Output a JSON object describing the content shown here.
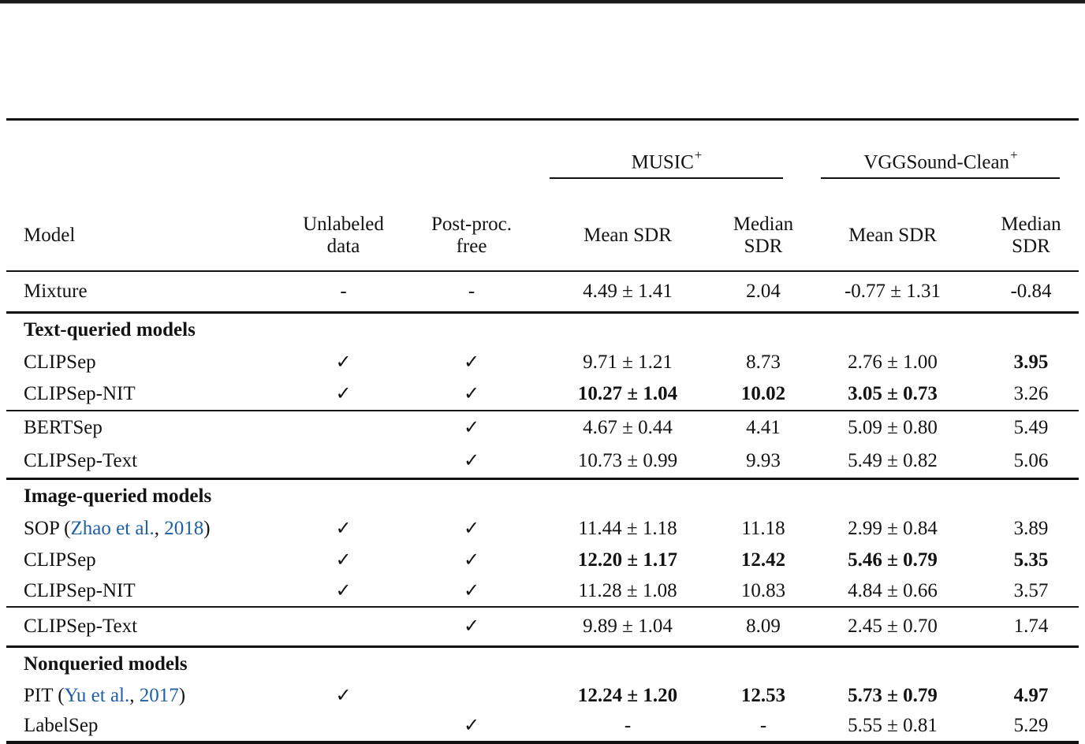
{
  "page": {
    "top_border_color": "#1a1a1a"
  },
  "colors": {
    "text": "#131313",
    "citation_blue": "#1f5fa8",
    "rule": "#111111"
  },
  "symbols": {
    "check": "✓",
    "dash": "-",
    "plus_minus": "±"
  },
  "header": {
    "model": "Model",
    "unlabeled": "Unlabeled\ndata",
    "postproc": "Post-proc.\nfree",
    "groups": [
      {
        "name": "MUSIC",
        "sup": "+",
        "mean": "Mean SDR",
        "median": "Median\nSDR"
      },
      {
        "name": "VGGSound-Clean",
        "sup": "+",
        "mean": "Mean SDR",
        "median": "Median\nSDR"
      }
    ]
  },
  "rows": [
    {
      "model": "Mixture",
      "unlabeled": "-",
      "postproc": "-",
      "music_mean": "4.49 ± 1.41",
      "music_median": "2.04",
      "vgg_mean": "-0.77 ± 1.31",
      "vgg_median": "-0.84"
    },
    {
      "section": "Text-queried models"
    },
    {
      "model": "CLIPSep",
      "unlabeled": "✓",
      "postproc": "✓",
      "music_mean": "9.71 ± 1.21",
      "music_median": "8.73",
      "vgg_mean": "2.76 ± 1.00",
      "vgg_median": "3.95"
    },
    {
      "model": "CLIPSep-NIT",
      "unlabeled": "✓",
      "postproc": "✓",
      "music_mean": "10.27 ± 1.04",
      "music_median": "10.02",
      "vgg_mean": "3.05 ± 0.73",
      "vgg_median": "3.26"
    },
    {
      "model": "BERTSep",
      "unlabeled": "",
      "postproc": "✓",
      "music_mean": "4.67 ± 0.44",
      "music_median": "4.41",
      "vgg_mean": "5.09 ± 0.80",
      "vgg_median": "5.49"
    },
    {
      "model": "CLIPSep-Text",
      "unlabeled": "",
      "postproc": "✓",
      "music_mean": "10.73 ± 0.99",
      "music_median": "9.93",
      "vgg_mean": "5.49 ± 0.82",
      "vgg_median": "5.06"
    },
    {
      "section": "Image-queried models"
    },
    {
      "model_pre": "SOP (",
      "cite_authors": "Zhao et al.",
      "cite_mid": ", ",
      "cite_year": "2018",
      "model_post": ")",
      "unlabeled": "✓",
      "postproc": "✓",
      "music_mean": "11.44 ± 1.18",
      "music_median": "11.18",
      "vgg_mean": "2.99 ± 0.84",
      "vgg_median": "3.89"
    },
    {
      "model": "CLIPSep",
      "unlabeled": "✓",
      "postproc": "✓",
      "music_mean": "12.20 ± 1.17",
      "music_median": "12.42",
      "vgg_mean": "5.46 ± 0.79",
      "vgg_median": "5.35"
    },
    {
      "model": "CLIPSep-NIT",
      "unlabeled": "✓",
      "postproc": "✓",
      "music_mean": "11.28 ± 1.08",
      "music_median": "10.83",
      "vgg_mean": "4.84 ± 0.66",
      "vgg_median": "3.57"
    },
    {
      "model": "CLIPSep-Text",
      "unlabeled": "",
      "postproc": "✓",
      "music_mean": "9.89 ± 1.04",
      "music_median": "8.09",
      "vgg_mean": "2.45 ± 0.70",
      "vgg_median": "1.74"
    },
    {
      "section": "Nonqueried models"
    },
    {
      "model_pre": "PIT (",
      "cite_authors": "Yu et al.",
      "cite_mid": ", ",
      "cite_year": "2017",
      "model_post": ")",
      "unlabeled": "✓",
      "postproc": "",
      "music_mean": "12.24 ± 1.20",
      "music_median": "12.53",
      "vgg_mean": "5.73 ± 0.79",
      "vgg_median": "4.97"
    },
    {
      "model": "LabelSep",
      "unlabeled": "",
      "postproc": "✓",
      "music_mean": "-",
      "music_median": "-",
      "vgg_mean": "5.55 ± 0.81",
      "vgg_median": "5.29"
    }
  ]
}
